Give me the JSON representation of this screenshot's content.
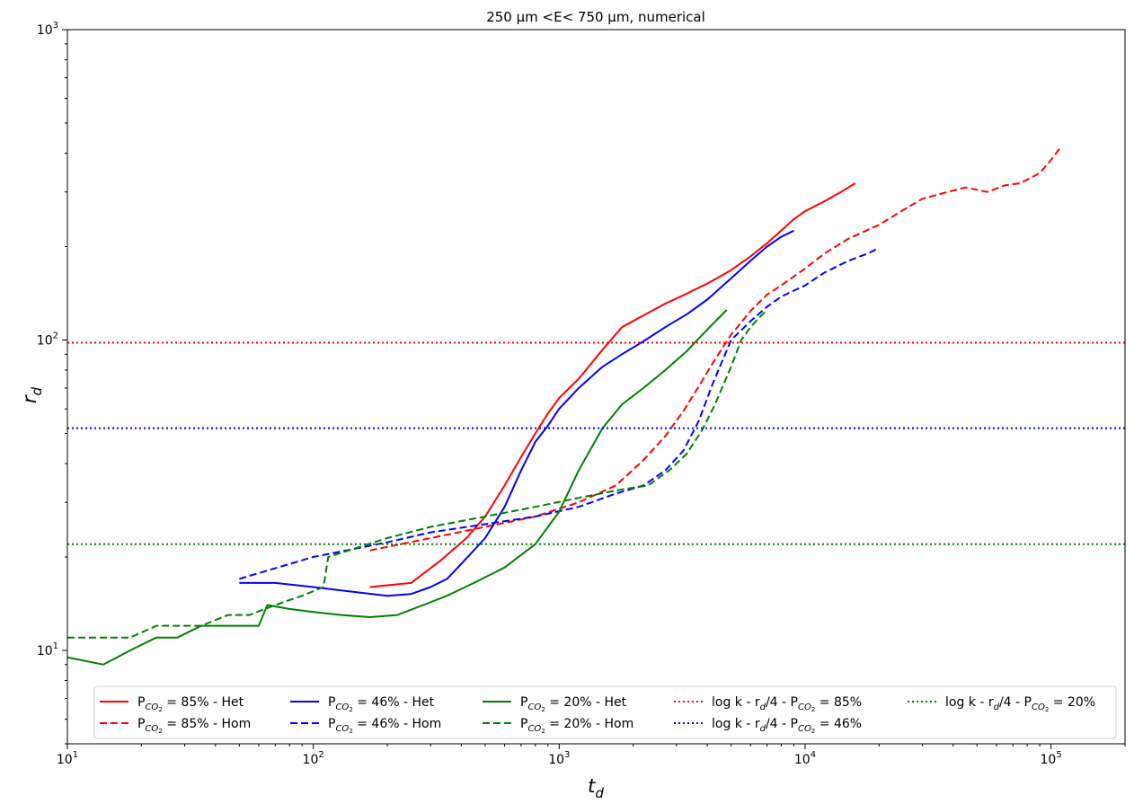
{
  "chart_data": {
    "type": "line",
    "title": "250 μm <E< 750 μm, numerical",
    "xlabel": "t",
    "xlabel_sub": "d",
    "ylabel": "r",
    "ylabel_sub": "d",
    "xscale": "log",
    "yscale": "log",
    "xlim": [
      10,
      200000
    ],
    "ylim": [
      5,
      1000
    ],
    "x_ticks": [
      {
        "value": 10,
        "base": "10",
        "exp": "1"
      },
      {
        "value": 100,
        "base": "10",
        "exp": "2"
      },
      {
        "value": 1000,
        "base": "10",
        "exp": "3"
      },
      {
        "value": 10000,
        "base": "10",
        "exp": "4"
      },
      {
        "value": 100000,
        "base": "10",
        "exp": "5"
      }
    ],
    "y_ticks": [
      {
        "value": 10,
        "base": "10",
        "exp": "1"
      },
      {
        "value": 100,
        "base": "10",
        "exp": "2"
      },
      {
        "value": 1000,
        "base": "10",
        "exp": "3"
      }
    ],
    "grid": false,
    "legend_position": "lower-center",
    "series": [
      {
        "name": "85% - Het",
        "color": "#ff0000",
        "dash": "solid",
        "x": [
          170,
          250,
          330,
          420,
          500,
          600,
          700,
          800,
          900,
          1000,
          1200,
          1500,
          1800,
          2200,
          2700,
          3300,
          4000,
          5000,
          6000,
          7000,
          8000,
          9000,
          10000,
          12000,
          14000,
          16000
        ],
        "y": [
          16,
          16.5,
          19.5,
          23,
          27,
          34,
          42,
          50,
          58,
          65,
          75,
          93,
          110,
          120,
          131,
          141,
          152,
          168,
          186,
          205,
          225,
          245,
          260,
          280,
          300,
          320
        ]
      },
      {
        "name": "85% - Hom",
        "color": "#ff0000",
        "dash": "dashed",
        "x": [
          170,
          300,
          500,
          800,
          1200,
          1700,
          2200,
          2700,
          3200,
          3700,
          4200,
          5000,
          6000,
          7000,
          8000,
          10000,
          12000,
          15000,
          20000,
          25000,
          30000,
          38000,
          45000,
          55000,
          65000,
          75000,
          90000,
          100000,
          110000
        ],
        "y": [
          21,
          23,
          25,
          27,
          30,
          34,
          41,
          49,
          59,
          71,
          84,
          104,
          124,
          140,
          150,
          170,
          190,
          212,
          235,
          262,
          285,
          300,
          310,
          300,
          315,
          320,
          345,
          380,
          420
        ]
      },
      {
        "name": "46% - Het",
        "color": "#0000ff",
        "dash": "solid",
        "x": [
          50,
          70,
          100,
          150,
          200,
          250,
          300,
          350,
          400,
          500,
          600,
          700,
          800,
          900,
          1000,
          1200,
          1500,
          1800,
          2200,
          2700,
          3300,
          4000,
          5000,
          6000,
          7000,
          8000,
          9000
        ],
        "y": [
          16.5,
          16.5,
          16,
          15.4,
          15,
          15.2,
          16,
          17,
          19,
          23,
          29,
          38,
          47,
          53,
          60,
          70,
          82,
          90,
          99,
          110,
          121,
          135,
          158,
          180,
          200,
          215,
          225
        ]
      },
      {
        "name": "46% - Hom",
        "color": "#0000ff",
        "dash": "dashed",
        "x": [
          50,
          100,
          200,
          300,
          500,
          800,
          1200,
          1700,
          2200,
          2700,
          3200,
          3700,
          4200,
          5000,
          6000,
          7000,
          8000,
          10000,
          12000,
          15000,
          18000,
          20000
        ],
        "y": [
          17,
          20,
          22.3,
          24,
          25.5,
          27,
          29,
          32,
          34,
          38,
          44,
          55,
          72,
          100,
          115,
          128,
          138,
          150,
          165,
          180,
          190,
          198
        ]
      },
      {
        "name": "20% - Het",
        "color": "#008000",
        "dash": "solid",
        "x": [
          10,
          14,
          18,
          23,
          28,
          35,
          45,
          60,
          65,
          80,
          100,
          130,
          170,
          220,
          280,
          350,
          450,
          600,
          800,
          1000,
          1200,
          1500,
          1800,
          2200,
          2700,
          3300,
          4000,
          4800
        ],
        "y": [
          9.5,
          9.0,
          10,
          11,
          11,
          12,
          12,
          12,
          14,
          13.6,
          13.3,
          13,
          12.8,
          13,
          14,
          15,
          16.5,
          18.5,
          22,
          28,
          38,
          52,
          62,
          70,
          80,
          92,
          108,
          125
        ]
      },
      {
        "name": "20% - Hom",
        "color": "#008000",
        "dash": "dashed",
        "x": [
          10,
          18,
          23,
          35,
          45,
          55,
          70,
          90,
          110,
          115,
          200,
          300,
          500,
          800,
          1200,
          1800,
          2300,
          2800,
          3300,
          3800,
          4300,
          5000,
          5500,
          6000,
          6500,
          7000
        ],
        "y": [
          11,
          11,
          12,
          12,
          13,
          13,
          14,
          15,
          16,
          20,
          23,
          25,
          27,
          29,
          31,
          33,
          34,
          38,
          43,
          51,
          62,
          82,
          100,
          110,
          118,
          125
        ]
      },
      {
        "name": "log k - r/4 - 85%",
        "color": "#ff0000",
        "dash": "dotted",
        "x": [
          10,
          200000
        ],
        "y": [
          98,
          98
        ]
      },
      {
        "name": "log k - r/4 - 46%",
        "color": "#0000ff",
        "dash": "dotted",
        "x": [
          10,
          200000
        ],
        "y": [
          52,
          52
        ]
      },
      {
        "name": "log k - r/4 - 20%",
        "color": "#008000",
        "dash": "dotted",
        "x": [
          10,
          200000
        ],
        "y": [
          22,
          22
        ]
      }
    ],
    "legend": [
      {
        "prefix": "P",
        "sub": "CO",
        "sub2": "2",
        "value": " = 85% - Het",
        "color": "#ff0000",
        "dash": "solid"
      },
      {
        "prefix": "P",
        "sub": "CO",
        "sub2": "2",
        "value": " = 85% - Hom",
        "color": "#ff0000",
        "dash": "dashed"
      },
      {
        "prefix": "P",
        "sub": "CO",
        "sub2": "2",
        "value": " = 46% - Het",
        "color": "#0000ff",
        "dash": "solid"
      },
      {
        "prefix": "P",
        "sub": "CO",
        "sub2": "2",
        "value": " = 46% - Hom",
        "color": "#0000ff",
        "dash": "dashed"
      },
      {
        "prefix": "P",
        "sub": "CO",
        "sub2": "2",
        "value": " = 20% - Het",
        "color": "#008000",
        "dash": "solid"
      },
      {
        "prefix": "P",
        "sub": "CO",
        "sub2": "2",
        "value": " = 20% - Hom",
        "color": "#008000",
        "dash": "dashed"
      },
      {
        "prefix": "log k - r",
        "sub": "d",
        "sub2": "",
        "value": "/4 - P",
        "tail_sub": "CO",
        "tail_sub2": "2",
        "tail": " = 85%",
        "color": "#ff0000",
        "dash": "dotted"
      },
      {
        "prefix": "log k - r",
        "sub": "d",
        "sub2": "",
        "value": "/4 - P",
        "tail_sub": "CO",
        "tail_sub2": "2",
        "tail": " = 46%",
        "color": "#0000ff",
        "dash": "dotted"
      },
      {
        "prefix": "log k - r",
        "sub": "d",
        "sub2": "",
        "value": "/4 - P",
        "tail_sub": "CO",
        "tail_sub2": "2",
        "tail": " = 20%",
        "color": "#008000",
        "dash": "dotted"
      }
    ]
  }
}
